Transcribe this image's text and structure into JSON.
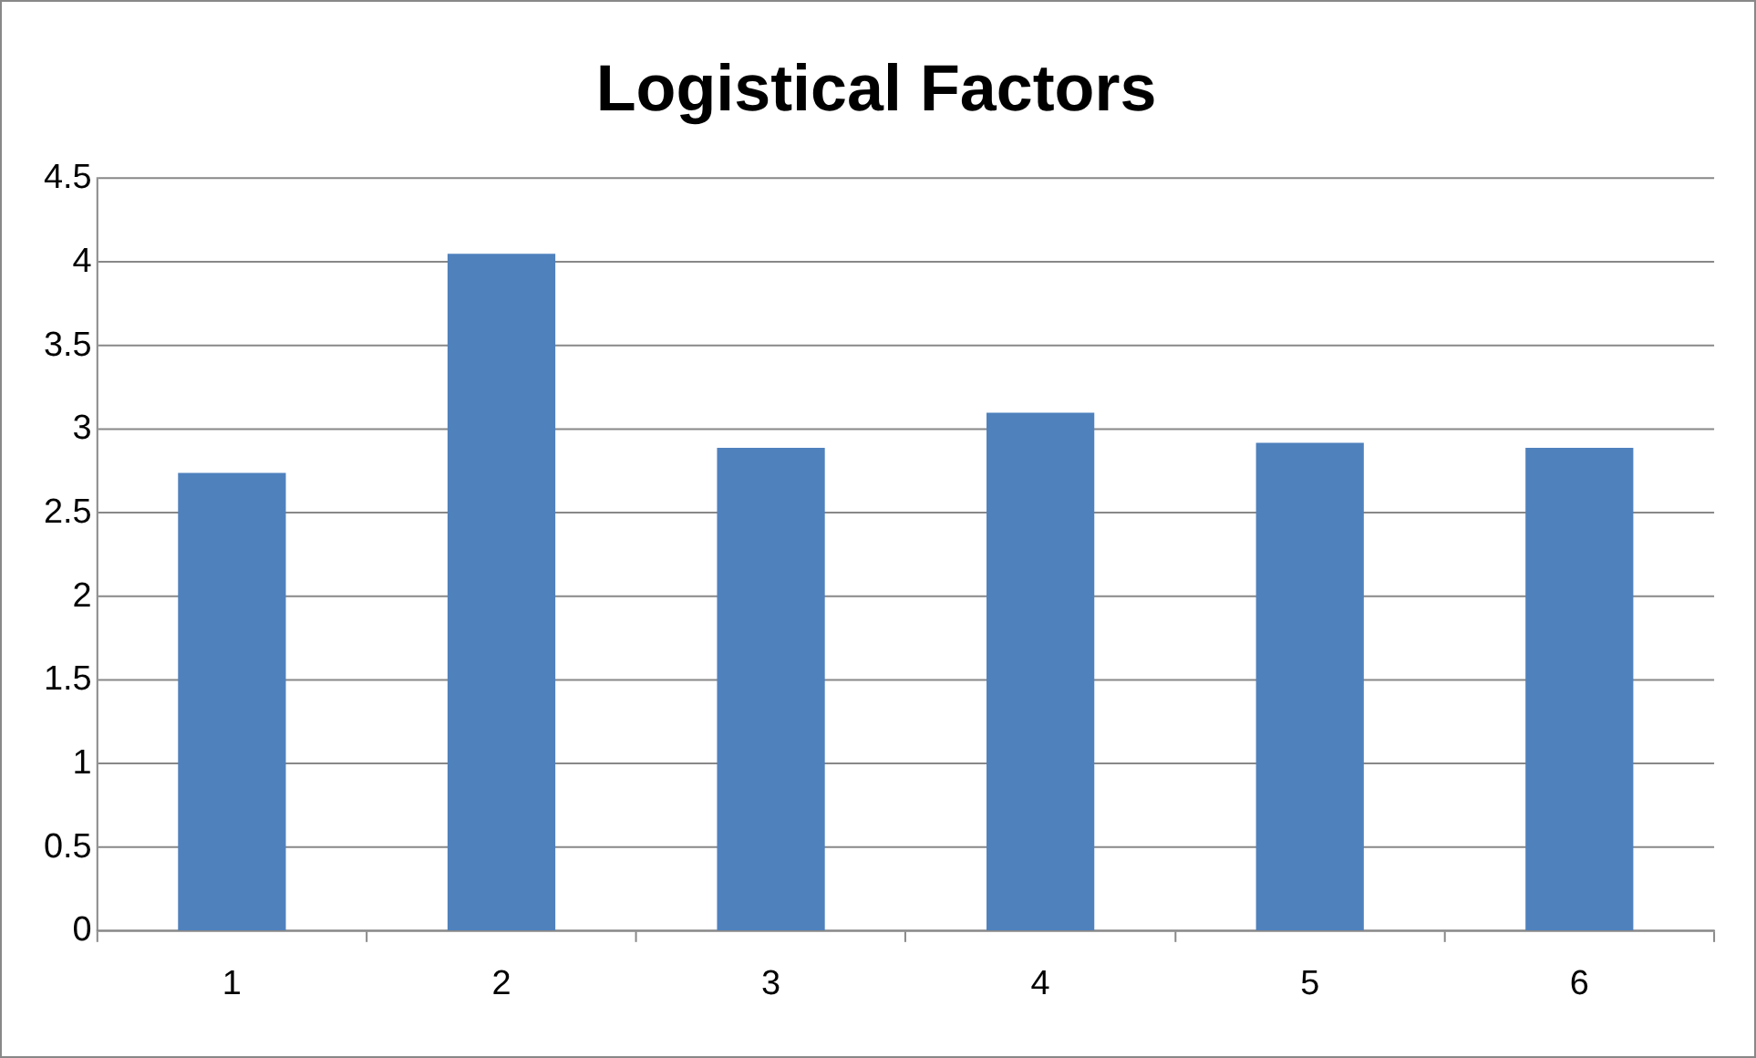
{
  "chart_data": {
    "type": "bar",
    "title": "Logistical Factors",
    "categories": [
      "1",
      "2",
      "3",
      "4",
      "5",
      "6"
    ],
    "values": [
      2.74,
      4.05,
      2.89,
      3.1,
      2.92,
      2.89
    ],
    "color": "#4f81bd",
    "ylim": [
      0,
      4.5
    ],
    "yticks": [
      0,
      0.5,
      1,
      1.5,
      2,
      2.5,
      3,
      3.5,
      4,
      4.5
    ],
    "grid": "y",
    "legend": false
  }
}
